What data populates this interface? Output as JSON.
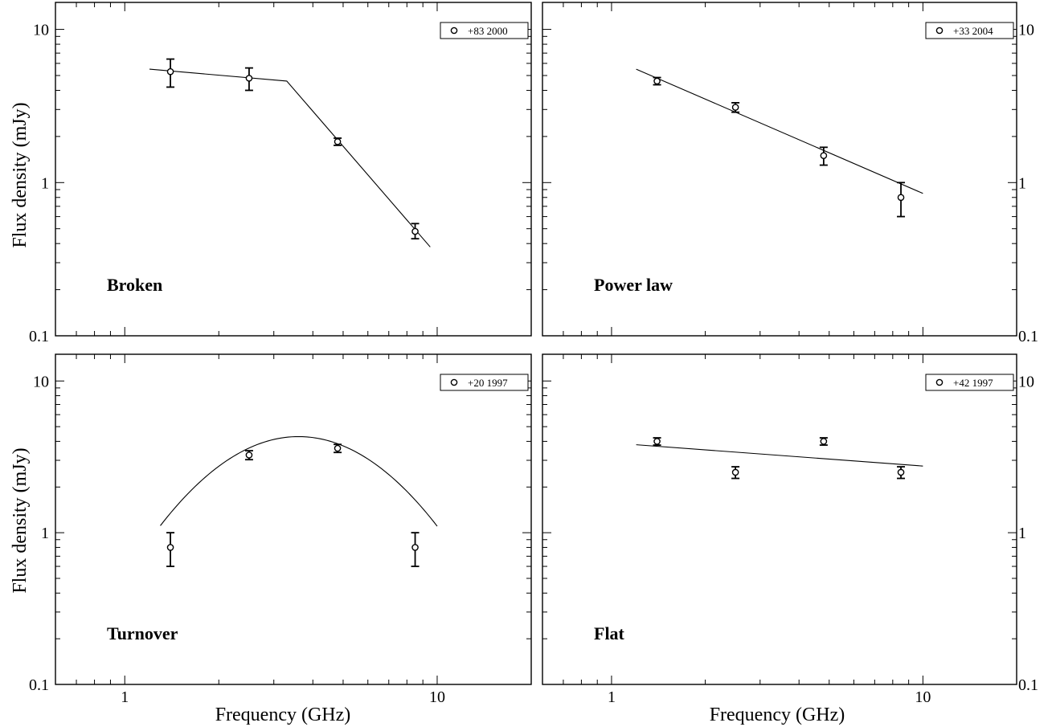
{
  "figure": {
    "ylabel": "Flux density (mJy)",
    "xlabel": "Frequency (GHz)"
  },
  "chart_data": [
    {
      "type": "scatter",
      "panel_label": "Broken",
      "legend": "+83 2000",
      "xlabel": "",
      "ylabel": "Flux density (mJy)",
      "x_scale": "log",
      "y_scale": "log",
      "xlim": [
        0.6,
        20
      ],
      "ylim": [
        0.1,
        15
      ],
      "x_ticks": [],
      "y_ticks": [
        "10",
        "1",
        "0.1"
      ],
      "y_ticks_side": "left",
      "legend_position": "top-right",
      "points": [
        {
          "x": 1.4,
          "y": 5.3,
          "err_lo": 1.1,
          "err_hi": 1.1
        },
        {
          "x": 2.5,
          "y": 4.8,
          "err_lo": 0.8,
          "err_hi": 0.8
        },
        {
          "x": 4.8,
          "y": 1.85,
          "err_lo": 0.1,
          "err_hi": 0.1
        },
        {
          "x": 8.5,
          "y": 0.48,
          "err_lo": 0.05,
          "err_hi": 0.06
        }
      ],
      "fit": {
        "kind": "broken",
        "points": [
          [
            1.2,
            5.5
          ],
          [
            3.3,
            4.6
          ],
          [
            9.5,
            0.38
          ]
        ]
      }
    },
    {
      "type": "scatter",
      "panel_label": "Power law",
      "legend": "+33 2004",
      "xlabel": "",
      "ylabel": "",
      "x_scale": "log",
      "y_scale": "log",
      "xlim": [
        0.6,
        20
      ],
      "ylim": [
        0.1,
        15
      ],
      "x_ticks": [],
      "y_ticks": [
        "10",
        "1",
        "0.1"
      ],
      "y_ticks_side": "right",
      "legend_position": "top-right",
      "points": [
        {
          "x": 1.4,
          "y": 4.6,
          "err_lo": 0.25,
          "err_hi": 0.25
        },
        {
          "x": 2.5,
          "y": 3.1,
          "err_lo": 0.22,
          "err_hi": 0.22
        },
        {
          "x": 4.8,
          "y": 1.5,
          "err_lo": 0.2,
          "err_hi": 0.2
        },
        {
          "x": 8.5,
          "y": 0.8,
          "err_lo": 0.2,
          "err_hi": 0.2
        }
      ],
      "fit": {
        "kind": "powerlaw",
        "points": [
          [
            1.2,
            5.5
          ],
          [
            10,
            0.85
          ]
        ]
      }
    },
    {
      "type": "scatter",
      "panel_label": "Turnover",
      "legend": "+20 1997",
      "xlabel": "Frequency (GHz)",
      "ylabel": "Flux density (mJy)",
      "x_scale": "log",
      "y_scale": "log",
      "xlim": [
        0.6,
        20
      ],
      "ylim": [
        0.1,
        15
      ],
      "x_ticks": [
        "1",
        "10"
      ],
      "y_ticks": [
        "10",
        "1",
        "0.1"
      ],
      "y_ticks_side": "left",
      "legend_position": "top-right",
      "points": [
        {
          "x": 1.4,
          "y": 0.8,
          "err_lo": 0.2,
          "err_hi": 0.2
        },
        {
          "x": 2.5,
          "y": 3.25,
          "err_lo": 0.22,
          "err_hi": 0.22
        },
        {
          "x": 4.8,
          "y": 3.6,
          "err_lo": 0.22,
          "err_hi": 0.22
        },
        {
          "x": 8.5,
          "y": 0.8,
          "err_lo": 0.2,
          "err_hi": 0.2
        }
      ],
      "fit": {
        "kind": "parabola",
        "x_start": 1.3,
        "x_end": 10,
        "peak_x": 3.6,
        "peak_y": 4.3,
        "curvature": -3.0
      }
    },
    {
      "type": "scatter",
      "panel_label": "Flat",
      "legend": "+42 1997",
      "xlabel": "Frequency (GHz)",
      "ylabel": "",
      "x_scale": "log",
      "y_scale": "log",
      "xlim": [
        0.6,
        20
      ],
      "ylim": [
        0.1,
        15
      ],
      "x_ticks": [
        "1",
        "10"
      ],
      "y_ticks": [
        "10",
        "1",
        "0.1"
      ],
      "y_ticks_side": "right",
      "legend_position": "top-right",
      "points": [
        {
          "x": 1.4,
          "y": 4.0,
          "err_lo": 0.22,
          "err_hi": 0.22
        },
        {
          "x": 2.5,
          "y": 2.5,
          "err_lo": 0.22,
          "err_hi": 0.22
        },
        {
          "x": 4.8,
          "y": 4.0,
          "err_lo": 0.22,
          "err_hi": 0.22
        },
        {
          "x": 8.5,
          "y": 2.5,
          "err_lo": 0.22,
          "err_hi": 0.22
        }
      ],
      "fit": {
        "kind": "powerlaw",
        "points": [
          [
            1.2,
            3.8
          ],
          [
            10,
            2.75
          ]
        ]
      }
    }
  ]
}
